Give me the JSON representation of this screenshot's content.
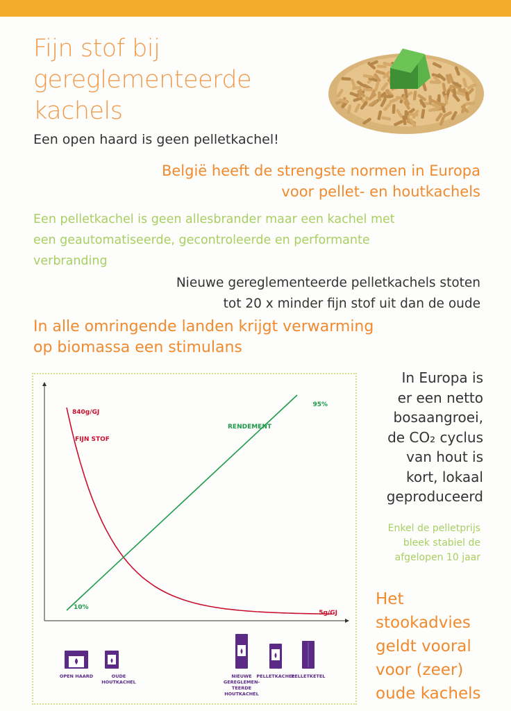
{
  "title_lines": [
    "Fijn stof bij",
    "gereglementeerde",
    "kachels"
  ],
  "subtitle": "Een open haard is geen pelletkachel!",
  "heading_belgium": [
    "België heeft de strengste normen in Europa",
    "voor pellet- en houtkachels"
  ],
  "pelletkachel_text": [
    "Een pelletkachel is geen allesbrander maar een kachel met",
    "een geautomatiseerde, gecontroleerde en performante",
    "verbranding"
  ],
  "new_stoves_text": [
    "Nieuwe gereglementeerde pelletkachels stoten",
    "tot 20 x minder fijn stof uit dan de oude"
  ],
  "heading_biomass": [
    "In alle omringende landen krijgt verwarming",
    "op biomassa een stimulans"
  ],
  "europe_text": [
    "In Europa is",
    "er een netto",
    "bosaangroei,",
    "de CO₂ cyclus",
    "van hout is",
    "kort, lokaal",
    "geproduceerd"
  ],
  "price_text": [
    "Enkel de pelletprijs",
    "bleek stabiel de",
    "afgelopen 10 jaar"
  ],
  "advice_text": [
    "Het",
    "stookadvies",
    "geldt vooral",
    "voor (zeer)",
    "oude kachels"
  ],
  "image": {
    "subject": "houtpellets-met-groen-huisje",
    "house_color": "#4a9a3a"
  },
  "colors": {
    "orange": "#f08a2e",
    "green": "#a8cf62",
    "chart_red": "#c8102e",
    "chart_green": "#1e9a4a",
    "purple": "#5b2a86",
    "top_bar": "#f3ad2b"
  },
  "chart_data": {
    "type": "line",
    "xlabel": "",
    "ylabel": "",
    "categories": [
      "OPEN HAARD",
      "OUDE HOUTKACHEL",
      "NIEUWE GEREGLEMENTEERDE HOUTKACHEL",
      "PELLETKACHEL",
      "PELLETKETEL"
    ],
    "series": [
      {
        "name": "FIJN STOF",
        "start_label": "840g/GJ",
        "end_label": "5g/GJ",
        "start_value": 840,
        "end_value": 5,
        "unit": "g/GJ",
        "shape": "decreasing-curve",
        "color": "#c8102e"
      },
      {
        "name": "RENDEMENT",
        "start_label": "10%",
        "end_label": "95%",
        "start_value": 10,
        "end_value": 95,
        "unit": "%",
        "shape": "linear",
        "color": "#1e9a4a"
      }
    ],
    "icons": [
      {
        "label_lines": [
          "OPEN HAARD"
        ],
        "icon": "open-fireplace-icon"
      },
      {
        "label_lines": [
          "OUDE",
          "HOUTKACHEL"
        ],
        "icon": "old-wood-stove-icon"
      },
      {
        "label_lines": [
          "NIEUWE",
          "GEREGLEMEN-",
          "TEERDE",
          "HOUTKACHEL"
        ],
        "icon": "new-wood-stove-icon"
      },
      {
        "label_lines": [
          "PELLETKACHEL"
        ],
        "icon": "pellet-stove-icon"
      },
      {
        "label_lines": [
          "PELLETKETEL"
        ],
        "icon": "pellet-boiler-icon"
      }
    ]
  }
}
